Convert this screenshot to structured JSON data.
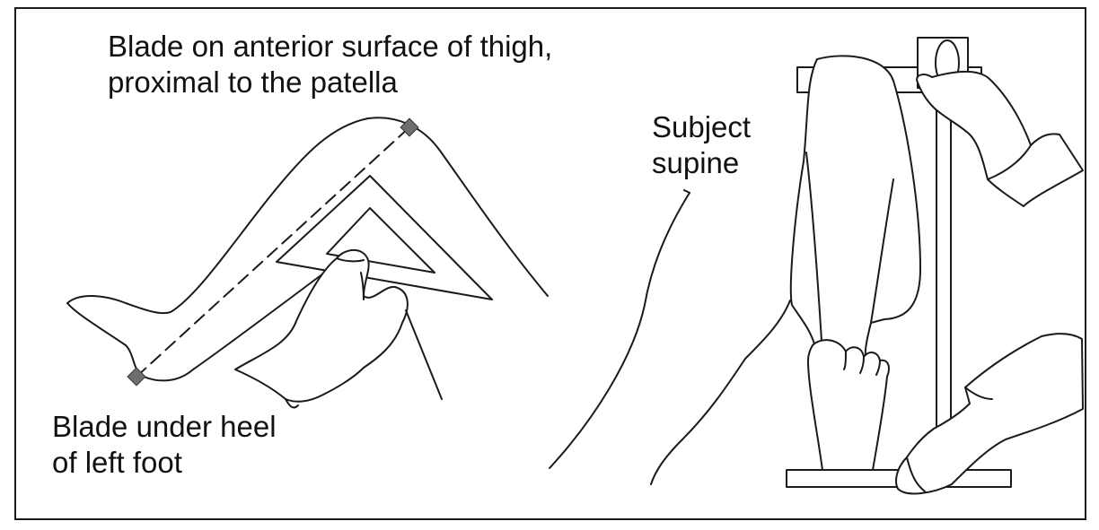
{
  "labels": {
    "blade_top_line1": "Blade on anterior surface of thigh,",
    "blade_top_line2": "proximal to the patella",
    "blade_heel_line1": "Blade under heel",
    "blade_heel_line2": "of left foot",
    "subject_line1": "Subject",
    "subject_line2": "supine"
  },
  "colors": {
    "line": "#1a1a1a",
    "marker": "#6e6e6e"
  }
}
